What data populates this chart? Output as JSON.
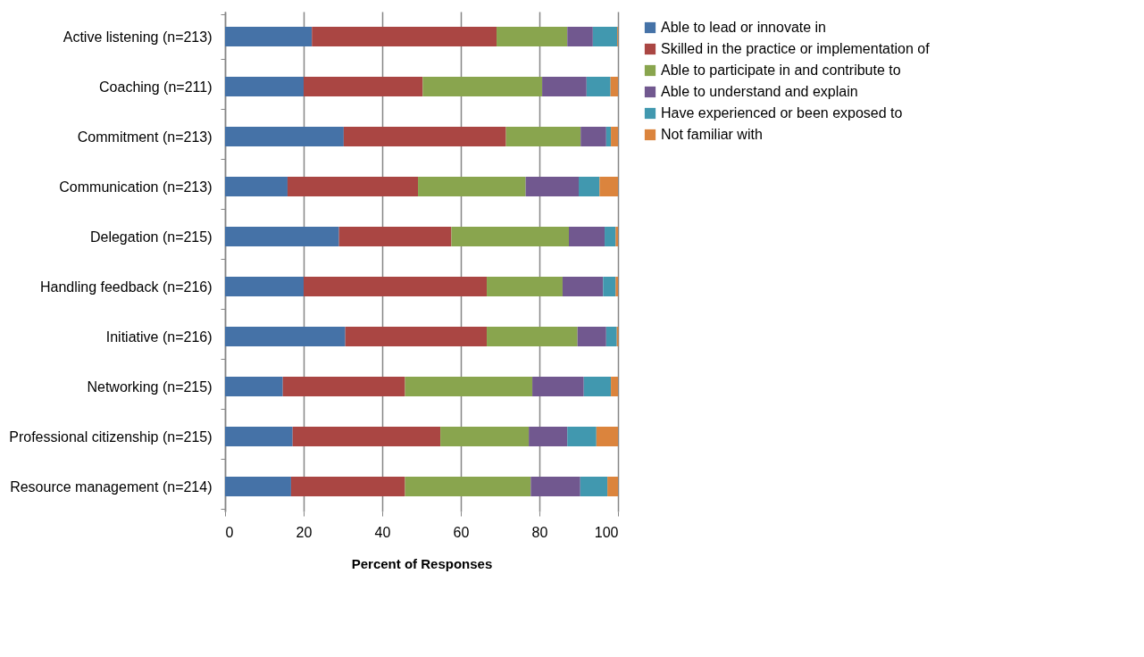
{
  "chart_data": {
    "type": "bar",
    "orientation": "horizontal",
    "stacked": true,
    "categories": [
      "Active listening (n=213)",
      "Coaching (n=211)",
      "Commitment  (n=213)",
      "Communication  (n=213)",
      "Delegation (n=215)",
      "Handling feedback (n=216)",
      "Initiative  (n=216)",
      "Networking (n=215)",
      "Professional citizenship  (n=215)",
      "Resource management  (n=214)"
    ],
    "series": [
      {
        "name": "Able to lead or innovate in",
        "color": "#4572a7",
        "values": [
          22.1,
          20.0,
          30.2,
          15.9,
          29.0,
          20.0,
          30.6,
          14.7,
          17.2,
          16.8
        ]
      },
      {
        "name": "Skilled in the practice or implementation of",
        "color": "#aa4643",
        "values": [
          47.0,
          30.3,
          41.3,
          33.2,
          28.6,
          46.6,
          36.0,
          31.1,
          37.6,
          29.0
        ]
      },
      {
        "name": "Able to participate in and contribute to",
        "color": "#89a54e",
        "values": [
          18.0,
          30.4,
          19.0,
          27.4,
          29.9,
          19.3,
          23.1,
          32.4,
          22.5,
          32.0
        ]
      },
      {
        "name": "Able to understand and explain",
        "color": "#71588f",
        "values": [
          6.5,
          11.3,
          6.5,
          13.5,
          9.1,
          10.3,
          7.3,
          13.1,
          9.8,
          12.6
        ]
      },
      {
        "name": "Have experienced or been exposed to",
        "color": "#4198af",
        "values": [
          6.2,
          6.1,
          1.2,
          5.3,
          2.8,
          3.2,
          2.7,
          6.9,
          7.4,
          6.9
        ]
      },
      {
        "name": "Not familiar with",
        "color": "#db843d",
        "values": [
          0.2,
          1.9,
          1.8,
          4.7,
          0.6,
          0.6,
          0.4,
          1.8,
          5.5,
          2.7
        ]
      }
    ],
    "xlabel": "Percent of Responses",
    "xlim": [
      0,
      100
    ],
    "xticks": [
      0,
      20,
      40,
      60,
      80,
      100
    ],
    "grid": "x",
    "legend": "right"
  }
}
